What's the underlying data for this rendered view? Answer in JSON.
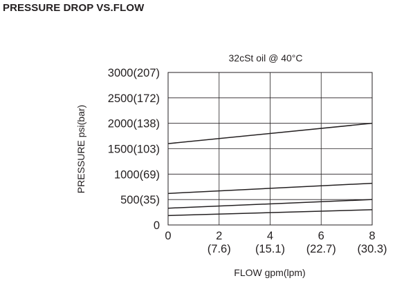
{
  "page": {
    "title": "PRESSURE DROP VS.FLOW"
  },
  "chart_data": {
    "type": "line",
    "title": "32cSt oil @ 40°C",
    "xlabel": "FLOW gpm(lpm)",
    "ylabel": "PRESSURE psi(bar)",
    "xlim": [
      0,
      8
    ],
    "ylim": [
      0,
      3000
    ],
    "grid": true,
    "x_ticks": [
      {
        "value": 0,
        "label": "0",
        "sublabel": ""
      },
      {
        "value": 2,
        "label": "2",
        "sublabel": "(7.6)"
      },
      {
        "value": 4,
        "label": "4",
        "sublabel": "(15.1)"
      },
      {
        "value": 6,
        "label": "6",
        "sublabel": "(22.7)"
      },
      {
        "value": 8,
        "label": "8",
        "sublabel": "(30.3)"
      }
    ],
    "y_ticks": [
      {
        "value": 0,
        "label": "0"
      },
      {
        "value": 500,
        "label": "500(35)"
      },
      {
        "value": 1000,
        "label": "1000(69)"
      },
      {
        "value": 1500,
        "label": "1500(103)"
      },
      {
        "value": 2000,
        "label": "2000(138)"
      },
      {
        "value": 2500,
        "label": "2500(172)"
      },
      {
        "value": 3000,
        "label": "3000(207)"
      }
    ],
    "series": [
      {
        "x": [
          0,
          8
        ],
        "y": [
          1600,
          2000
        ]
      },
      {
        "x": [
          0,
          8
        ],
        "y": [
          620,
          820
        ]
      },
      {
        "x": [
          0,
          8
        ],
        "y": [
          330,
          500
        ]
      },
      {
        "x": [
          0,
          8
        ],
        "y": [
          185,
          300
        ]
      }
    ]
  }
}
